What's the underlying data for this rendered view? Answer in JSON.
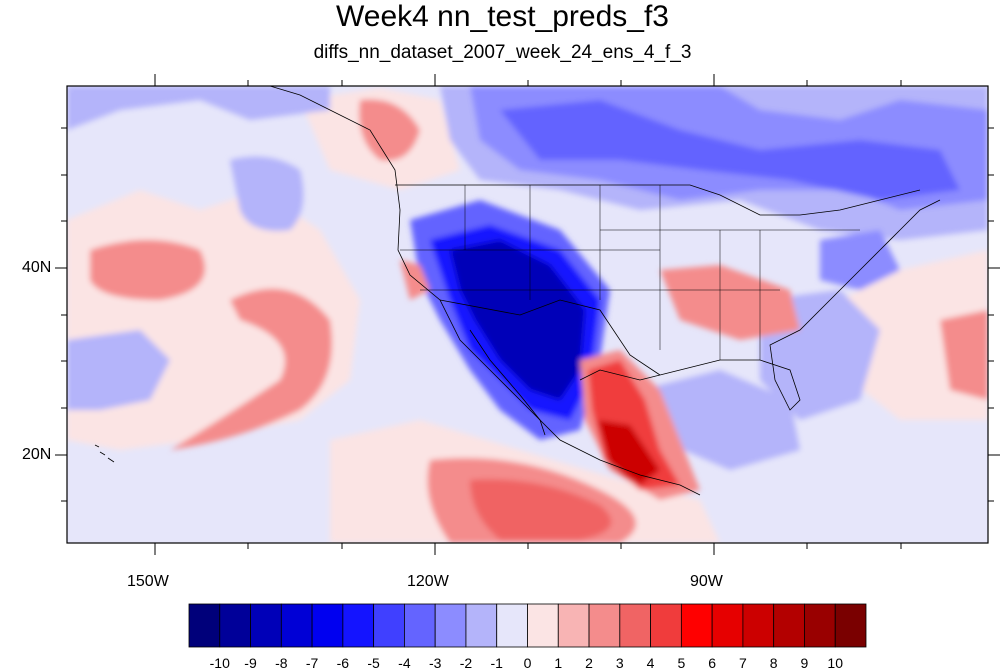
{
  "title": "Week4 nn_test_preds_f3",
  "subtitle": "diffs_nn_dataset_2007_week_24_ens_4_f_3",
  "map": {
    "lon_range": [
      -160,
      -60
    ],
    "lat_range": [
      10.9,
      58.6
    ],
    "lon_labels": [
      "150W",
      "120W",
      "90W"
    ],
    "lat_labels": [
      "40N",
      "20N"
    ]
  },
  "colorbar": {
    "levels": [
      "-10",
      "-9",
      "-8",
      "-7",
      "-6",
      "-5",
      "-4",
      "-3",
      "-2",
      "-1",
      "0",
      "1",
      "2",
      "3",
      "4",
      "5",
      "6",
      "7",
      "8",
      "9",
      "10"
    ],
    "colors": [
      "#00007a",
      "#000099",
      "#0000b8",
      "#0000d6",
      "#0000f0",
      "#1414ff",
      "#4040ff",
      "#6464ff",
      "#8c8cff",
      "#b4b4fa",
      "#e6e6fa",
      "#fbe4e4",
      "#f8b4b4",
      "#f48c8c",
      "#f06464",
      "#f03c3c",
      "#ff0000",
      "#e60000",
      "#cc0000",
      "#b30000",
      "#990000",
      "#7a0000"
    ]
  },
  "colors": {
    "background": "#e6e6fa",
    "frame": "#000000",
    "coast": "#000000"
  }
}
